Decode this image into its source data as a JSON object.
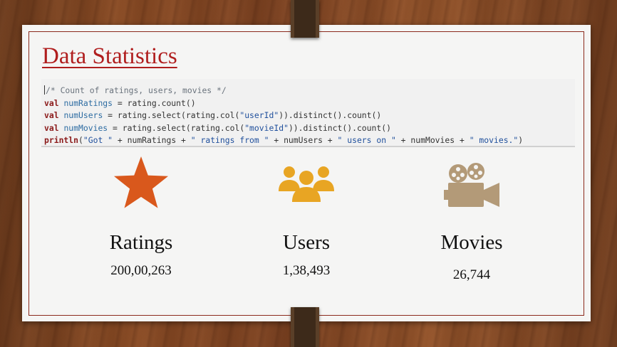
{
  "slide": {
    "title": "Data Statistics",
    "colors": {
      "title": "#b01e1e",
      "star": "#d9581c",
      "users": "#e8a523",
      "movies": "#b39a78",
      "border": "#8b2a1c"
    }
  },
  "code": {
    "line1": "/* Count of ratings, users, movies */",
    "line2_kw": "val",
    "line2_id": "numRatings",
    "line2_rest": " = rating.count()",
    "line3_kw": "val",
    "line3_id": "numUsers",
    "line3_a": " = rating.select(rating.col(",
    "line3_str": "\"userId\"",
    "line3_b": ")).distinct().count()",
    "line4_kw": "val",
    "line4_id": "numMovies",
    "line4_a": " = rating.select(rating.col(",
    "line4_str": "\"movieId\"",
    "line4_b": ")).distinct().count()",
    "line5_kw": "println",
    "line5_a": "(",
    "line5_s1": "\"Got \"",
    "line5_b": " + numRatings + ",
    "line5_s2": "\" ratings from \"",
    "line5_c": " + numUsers + ",
    "line5_s3": "\" users on \"",
    "line5_d": " + numMovies + ",
    "line5_s4": "\" movies.\"",
    "line5_e": ")"
  },
  "stats": [
    {
      "icon": "star-icon",
      "label": "Ratings",
      "value": "200,00,263"
    },
    {
      "icon": "users-icon",
      "label": "Users",
      "value": "1,38,493"
    },
    {
      "icon": "movie-camera-icon",
      "label": "Movies",
      "value": "26,744"
    }
  ]
}
